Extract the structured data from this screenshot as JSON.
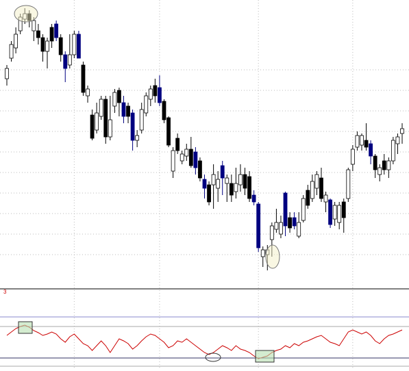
{
  "chart_data": [
    {
      "type": "candlestick",
      "open": [
        305,
        335,
        350,
        375,
        392,
        400,
        375,
        375,
        365,
        345,
        380,
        385,
        365,
        340,
        325,
        340,
        370,
        325,
        280,
        252,
        230,
        250,
        275,
        220,
        265,
        288,
        270,
        265,
        255,
        215,
        230,
        255,
        275,
        295,
        292,
        272,
        248,
        170,
        218,
        185,
        192,
        202,
        198,
        185,
        158,
        150,
        150,
        145,
        178,
        152,
        152,
        140,
        150,
        165,
        162,
        135,
        122,
        45,
        48,
        70,
        85,
        78,
        138,
        102,
        102,
        75,
        98,
        142,
        130,
        145,
        160,
        125,
        128,
        100,
        95,
        125,
        130,
        180,
        205,
        208,
        215,
        210,
        192,
        165,
        185,
        172,
        185,
        210,
        225
      ],
      "high": [
        325,
        360,
        380,
        400,
        408,
        405,
        395,
        385,
        370,
        365,
        385,
        390,
        370,
        345,
        370,
        375,
        375,
        330,
        295,
        260,
        270,
        280,
        280,
        280,
        290,
        292,
        280,
        270,
        260,
        230,
        270,
        285,
        295,
        305,
        310,
        275,
        250,
        205,
        225,
        200,
        210,
        220,
        205,
        190,
        165,
        155,
        180,
        170,
        185,
        165,
        165,
        175,
        180,
        175,
        170,
        142,
        125,
        60,
        62,
        95,
        115,
        105,
        140,
        110,
        110,
        110,
        135,
        150,
        165,
        170,
        175,
        140,
        130,
        125,
        125,
        130,
        175,
        208,
        228,
        225,
        240,
        215,
        195,
        180,
        195,
        190,
        220,
        225,
        240
      ],
      "low": [
        295,
        330,
        342,
        370,
        385,
        380,
        360,
        355,
        330,
        320,
        350,
        360,
        330,
        300,
        320,
        335,
        335,
        280,
        270,
        215,
        225,
        245,
        210,
        215,
        255,
        250,
        240,
        240,
        200,
        205,
        225,
        250,
        265,
        270,
        265,
        240,
        205,
        160,
        195,
        180,
        185,
        175,
        165,
        155,
        130,
        120,
        115,
        125,
        135,
        125,
        125,
        130,
        140,
        135,
        125,
        120,
        52,
        30,
        25,
        45,
        80,
        72,
        75,
        80,
        85,
        72,
        95,
        115,
        125,
        135,
        125,
        110,
        87,
        90,
        85,
        80,
        125,
        170,
        200,
        200,
        200,
        180,
        160,
        155,
        165,
        160,
        180,
        195,
        210
      ],
      "close": [
        320,
        355,
        370,
        395,
        400,
        390,
        390,
        365,
        345,
        360,
        360,
        365,
        340,
        320,
        340,
        370,
        335,
        285,
        290,
        218,
        255,
        275,
        220,
        245,
        285,
        270,
        250,
        250,
        215,
        222,
        260,
        280,
        290,
        280,
        270,
        245,
        208,
        200,
        200,
        195,
        202,
        178,
        175,
        160,
        145,
        125,
        165,
        158,
        160,
        160,
        135,
        152,
        165,
        145,
        130,
        125,
        58,
        55,
        55,
        90,
        95,
        95,
        90,
        87,
        90,
        95,
        130,
        120,
        155,
        165,
        130,
        135,
        92,
        120,
        120,
        102,
        172,
        202,
        222,
        222,
        205,
        192,
        172,
        175,
        172,
        185,
        215,
        220,
        232
      ],
      "colors": [
        "#fff",
        "#fff",
        "#fff",
        "#fff",
        "#fff",
        "#000",
        "#fff",
        "#000",
        "#000",
        "#fff",
        "#000",
        "#000080",
        "#000",
        "#000080",
        "#fff",
        "#fff",
        "#000080",
        "#000",
        "#fff",
        "#000",
        "#fff",
        "#fff",
        "#000",
        "#fff",
        "#fff",
        "#000",
        "#000080",
        "#000",
        "#000080",
        "#fff",
        "#fff",
        "#fff",
        "#fff",
        "#000",
        "#000080",
        "#000",
        "#000",
        "#fff",
        "#000",
        "#fff",
        "#fff",
        "#000",
        "#000080",
        "#000",
        "#000080",
        "#000",
        "#fff",
        "#fff",
        "#000080",
        "#fff",
        "#000",
        "#fff",
        "#fff",
        "#000",
        "#000",
        "#000080",
        "#000080",
        "#fff",
        "#fff",
        "#fff",
        "#fff",
        "#fff",
        "#000080",
        "#000",
        "#000080",
        "#fff",
        "#fff",
        "#000",
        "#fff",
        "#fff",
        "#000",
        "#fff",
        "#000080",
        "#fff",
        "#fff",
        "#000",
        "#fff",
        "#fff",
        "#fff",
        "#fff",
        "#000",
        "#000080",
        "#000",
        "#fff",
        "#000",
        "#fff",
        "#fff",
        "#fff",
        "#fff"
      ],
      "ylim": [
        0,
        420
      ],
      "ygrid": [
        48,
        78,
        108,
        138,
        168,
        198,
        228,
        258,
        288,
        318
      ],
      "xgrid": [
        15,
        34,
        56,
        77
      ]
    },
    {
      "type": "line",
      "label": "3",
      "label_color": "#cc0000",
      "color": "#cc0000",
      "values": [
        50,
        55,
        60,
        63,
        65,
        62,
        57,
        54,
        50,
        52,
        55,
        52,
        45,
        40,
        48,
        52,
        45,
        38,
        35,
        28,
        35,
        42,
        35,
        25,
        35,
        45,
        42,
        38,
        30,
        35,
        42,
        48,
        52,
        50,
        45,
        40,
        32,
        35,
        42,
        40,
        45,
        40,
        35,
        30,
        25,
        22,
        25,
        30,
        35,
        32,
        28,
        35,
        30,
        28,
        25,
        20,
        16,
        18,
        20,
        25,
        28,
        30,
        35,
        32,
        38,
        35,
        40,
        42,
        45,
        48,
        50,
        45,
        40,
        38,
        35,
        45,
        55,
        58,
        55,
        52,
        55,
        50,
        42,
        38,
        45,
        50,
        52,
        55,
        58
      ],
      "ylim": [
        0,
        120
      ],
      "levels": [
        {
          "value": 77,
          "color": "#8888cc"
        },
        {
          "value": 63,
          "color": "#aaaaaa"
        },
        {
          "value": 17,
          "color": "#333366"
        },
        {
          "value": 5,
          "color": "#aaaaaa"
        }
      ]
    }
  ]
}
